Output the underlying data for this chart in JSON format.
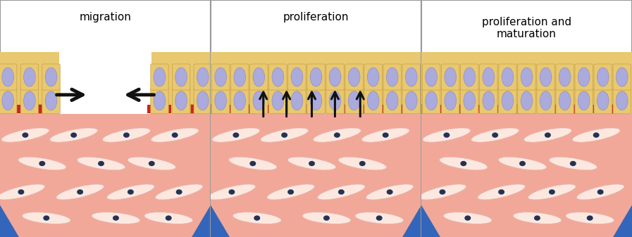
{
  "panels": [
    {
      "title": "migration"
    },
    {
      "title": "proliferation"
    },
    {
      "title": "proliferation and\nmaturation"
    }
  ],
  "bg_color": "#f0f0f0",
  "panel_bg": "#ffffff",
  "dermis_color": "#f2a898",
  "epithelium_color": "#e8c870",
  "cell_body_color": "#e8c870",
  "cell_border_color": "#c8a040",
  "cell_blue": "#aaaadd",
  "cell_blue_border": "#8888bb",
  "red_cell": "#cc2222",
  "border_color": "#999999",
  "blue_base": "#3366bb",
  "gap_color": "#ffffff",
  "arrow_color": "#111111",
  "fibro_body": "#fde8e0",
  "fibro_border": "#ddbbbb",
  "fibro_nucleus": "#223355",
  "orange_band": "#d4943a"
}
